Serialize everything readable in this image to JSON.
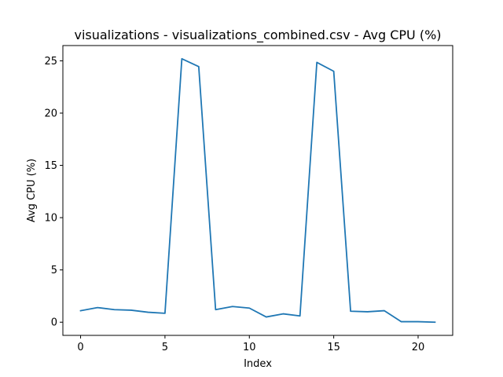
{
  "chart_data": {
    "type": "line",
    "title": "visualizations - visualizations_combined.csv - Avg CPU (%)",
    "xlabel": "Index",
    "ylabel": "Avg CPU (%)",
    "xlim": [
      -1.05,
      22.05
    ],
    "ylim": [
      -1.26,
      26.46
    ],
    "x_ticks": [
      0,
      5,
      10,
      15,
      20
    ],
    "y_ticks": [
      0,
      5,
      10,
      15,
      20,
      25
    ],
    "grid": false,
    "line_color": "#1f77b4",
    "series": [
      {
        "x": [
          0,
          1,
          2,
          3,
          4,
          5,
          6,
          7,
          8,
          9,
          10,
          11,
          12,
          13,
          14,
          15,
          16,
          17,
          18,
          19,
          20,
          21
        ],
        "values": [
          1.1,
          1.4,
          1.2,
          1.15,
          0.95,
          0.85,
          25.2,
          24.45,
          1.2,
          1.5,
          1.35,
          0.5,
          0.8,
          0.6,
          24.85,
          24.0,
          1.05,
          1.0,
          1.1,
          0.05,
          0.05,
          0.0
        ]
      }
    ]
  }
}
